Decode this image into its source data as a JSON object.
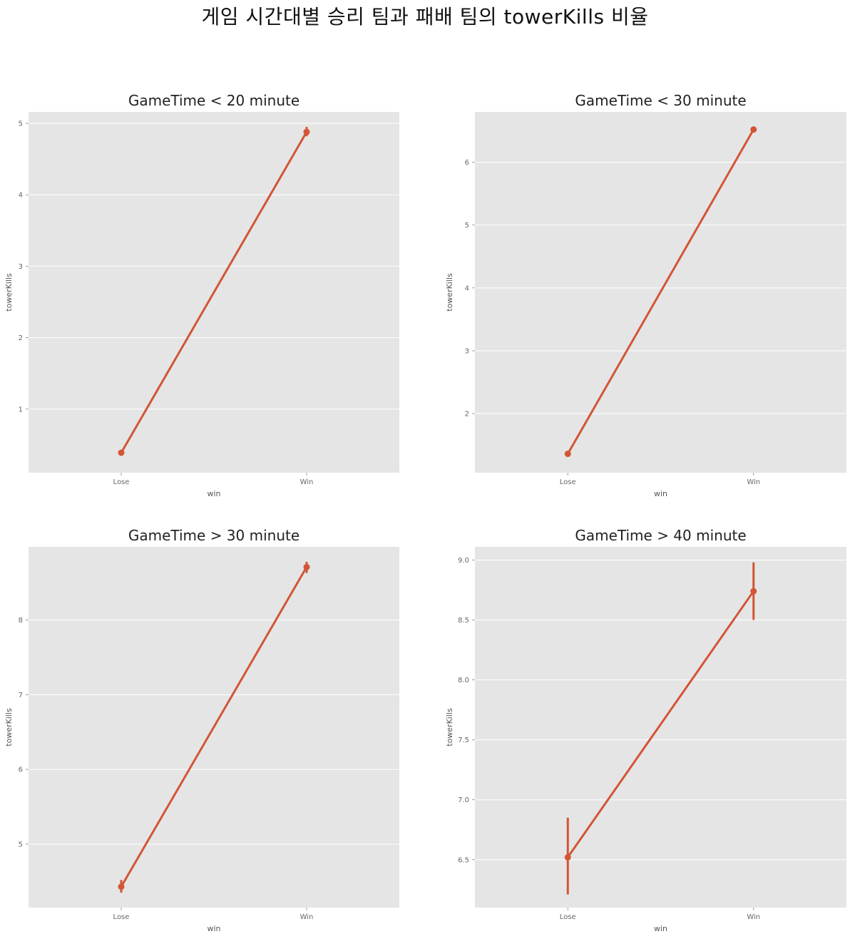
{
  "figure": {
    "suptitle": "게임 시간대별 승리 팀과 패배 팀의 towerKills 비율",
    "colors": {
      "panel": "#e5e5e5",
      "grid": "#ffffff",
      "line": "#d35535",
      "tick": "#666666"
    }
  },
  "chart_data": [
    {
      "type": "line",
      "title": "GameTime < 20 minute",
      "xlabel": "win",
      "ylabel": "towerKills",
      "categories": [
        "Lose",
        "Win"
      ],
      "values": [
        0.39,
        4.88
      ],
      "ci_low": [
        0.37,
        4.82
      ],
      "ci_high": [
        0.41,
        4.95
      ],
      "ylim": [
        0.11,
        5.16
      ],
      "yticks": [
        1,
        2,
        3,
        4,
        5
      ],
      "ytick_labels": [
        "1",
        "2",
        "3",
        "4",
        "5"
      ],
      "grid": true
    },
    {
      "type": "line",
      "title": "GameTime < 30 minute",
      "xlabel": "win",
      "ylabel": "towerKills",
      "categories": [
        "Lose",
        "Win"
      ],
      "values": [
        1.36,
        6.52
      ],
      "ci_low": [
        1.34,
        6.48
      ],
      "ci_high": [
        1.38,
        6.56
      ],
      "ylim": [
        1.06,
        6.8
      ],
      "yticks": [
        2,
        3,
        4,
        5,
        6
      ],
      "ytick_labels": [
        "2",
        "3",
        "4",
        "5",
        "6"
      ],
      "grid": true
    },
    {
      "type": "line",
      "title": "GameTime > 30 minute",
      "xlabel": "win",
      "ylabel": "towerKills",
      "categories": [
        "Lose",
        "Win"
      ],
      "values": [
        4.43,
        8.71
      ],
      "ci_low": [
        4.35,
        8.63
      ],
      "ci_high": [
        4.52,
        8.78
      ],
      "ylim": [
        4.15,
        8.98
      ],
      "yticks": [
        5,
        6,
        7,
        8
      ],
      "ytick_labels": [
        "5",
        "6",
        "7",
        "8"
      ],
      "grid": true
    },
    {
      "type": "line",
      "title": "GameTime > 40 minute",
      "xlabel": "win",
      "ylabel": "towerKills",
      "categories": [
        "Lose",
        "Win"
      ],
      "values": [
        6.52,
        8.74
      ],
      "ci_low": [
        6.21,
        8.5
      ],
      "ci_high": [
        6.85,
        8.98
      ],
      "ylim": [
        6.1,
        9.11
      ],
      "yticks": [
        6.5,
        7.0,
        7.5,
        8.0,
        8.5,
        9.0
      ],
      "ytick_labels": [
        "6.5",
        "7.0",
        "7.5",
        "8.0",
        "8.5",
        "9.0"
      ],
      "grid": true
    }
  ]
}
